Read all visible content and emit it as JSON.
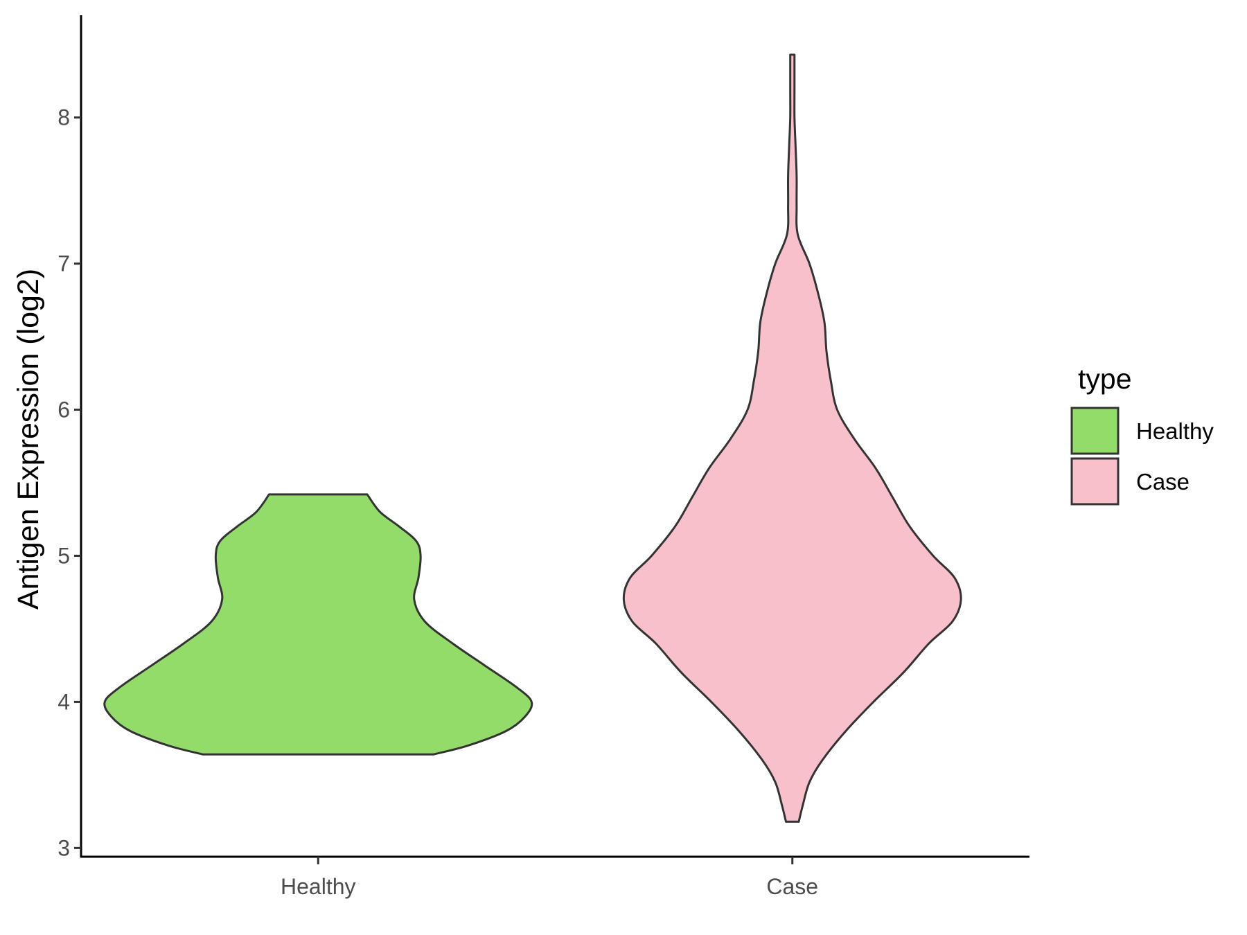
{
  "chart_data": {
    "type": "violin",
    "title": "",
    "xlabel": "",
    "ylabel": "Antigen Expression (log2)",
    "categories": [
      "Healthy",
      "Case"
    ],
    "ylim": [
      2.94,
      8.7
    ],
    "yticks": [
      3,
      4,
      5,
      6,
      7,
      8
    ],
    "grid": false,
    "legend": {
      "title": "type",
      "placement": "right",
      "entries": [
        {
          "label": "Healthy",
          "color": "#93DC6A"
        },
        {
          "label": "Case",
          "color": "#F8C0CB"
        }
      ]
    },
    "series": [
      {
        "name": "Healthy",
        "color": "#93DC6A",
        "range": [
          3.64,
          5.42
        ],
        "density": [
          [
            3.64,
            0.54
          ],
          [
            3.7,
            0.7
          ],
          [
            3.8,
            0.88
          ],
          [
            3.9,
            0.97
          ],
          [
            4.0,
            1.0
          ],
          [
            4.1,
            0.93
          ],
          [
            4.25,
            0.78
          ],
          [
            4.4,
            0.63
          ],
          [
            4.55,
            0.5
          ],
          [
            4.7,
            0.45
          ],
          [
            4.85,
            0.47
          ],
          [
            5.0,
            0.48
          ],
          [
            5.1,
            0.46
          ],
          [
            5.2,
            0.38
          ],
          [
            5.3,
            0.29
          ],
          [
            5.42,
            0.23
          ]
        ]
      },
      {
        "name": "Case",
        "color": "#F8C0CB",
        "range": [
          3.18,
          8.43
        ],
        "density": [
          [
            3.18,
            0.03
          ],
          [
            3.3,
            0.05
          ],
          [
            3.45,
            0.08
          ],
          [
            3.6,
            0.14
          ],
          [
            3.8,
            0.25
          ],
          [
            4.0,
            0.38
          ],
          [
            4.2,
            0.52
          ],
          [
            4.4,
            0.64
          ],
          [
            4.55,
            0.75
          ],
          [
            4.7,
            0.79
          ],
          [
            4.85,
            0.76
          ],
          [
            5.0,
            0.66
          ],
          [
            5.2,
            0.55
          ],
          [
            5.4,
            0.47
          ],
          [
            5.6,
            0.39
          ],
          [
            5.8,
            0.29
          ],
          [
            6.0,
            0.21
          ],
          [
            6.2,
            0.18
          ],
          [
            6.4,
            0.16
          ],
          [
            6.6,
            0.15
          ],
          [
            6.8,
            0.12
          ],
          [
            7.0,
            0.08
          ],
          [
            7.2,
            0.025
          ],
          [
            7.4,
            0.02
          ],
          [
            7.6,
            0.02
          ],
          [
            7.8,
            0.015
          ],
          [
            8.0,
            0.01
          ],
          [
            8.2,
            0.01
          ],
          [
            8.43,
            0.01
          ]
        ]
      }
    ]
  }
}
